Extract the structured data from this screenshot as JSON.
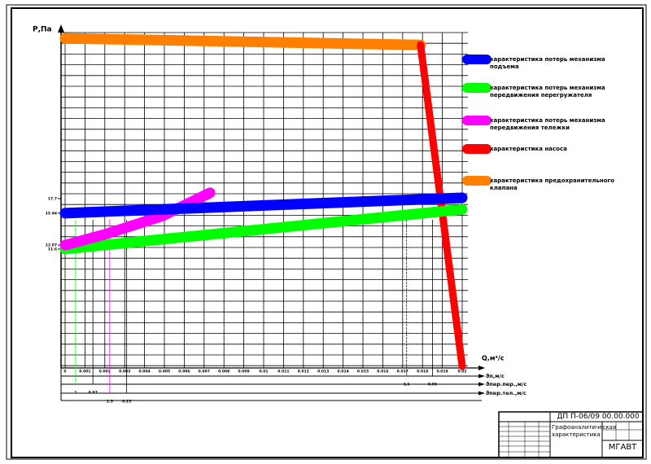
{
  "chart_data": {
    "type": "line",
    "y_label": "Р,Па",
    "x_label": "Q,м³/с",
    "xlim": [
      0,
      0.02
    ],
    "xticks": [
      0,
      0.001,
      0.002,
      0.003,
      0.004,
      0.005,
      0.006,
      0.007,
      0.008,
      0.009,
      0.01,
      0.011,
      0.012,
      0.013,
      0.014,
      0.015,
      0.016,
      0.017,
      0.018,
      0.019,
      0.02
    ],
    "ylim": [
      -2.8,
      37.8
    ],
    "yticks": [
      17.7,
      15.94,
      12.07,
      11.6
    ],
    "grid": true,
    "series": [
      {
        "name": "характеристика потерь механизма подъема",
        "color": "#0000ff",
        "x": [
          0,
          0.02
        ],
        "values": [
          15.94,
          17.8
        ]
      },
      {
        "name": "характеристика потерь механизма передвижения перегружателя",
        "color": "#00ff00",
        "x": [
          0,
          0.02
        ],
        "values": [
          11.6,
          16.4
        ]
      },
      {
        "name": "характеристика потерь механизма передвижения тележки",
        "color": "#ff00ff",
        "x": [
          0,
          0.00205,
          0.0049,
          0.0073
        ],
        "values": [
          12.07,
          13.4,
          15.6,
          18.4
        ]
      },
      {
        "name": "характеристика насоса",
        "color": "#ff0000",
        "x": [
          0.0179,
          0.02
        ],
        "values": [
          36.3,
          -2.6
        ]
      },
      {
        "name": "характеристика предохранительного клапана",
        "color": "#ff8000",
        "x": [
          0,
          0.0179
        ],
        "values": [
          37.1,
          36.3
        ]
      }
    ],
    "sub_axes": [
      {
        "label": "ϑп,м/с",
        "marks": [
          {
            "q": 0.0172,
            "label": "1.6"
          },
          {
            "q": 0.0185,
            "label": "0.95"
          }
        ]
      },
      {
        "label": "ϑпер.пер.,м/с",
        "marks": [
          {
            "q": 0.00053,
            "label": "1"
          },
          {
            "q": 0.0014,
            "label": "0.87"
          }
        ]
      },
      {
        "label": "ϑпер.тел.,м/с",
        "marks": [
          {
            "q": 0.00225,
            "label": "1.5"
          },
          {
            "q": 0.0031,
            "label": "0.15"
          }
        ]
      }
    ]
  },
  "title_block": {
    "code": "ДП П-06/09 00.00.000",
    "name": "Графоаналитическая характеристика",
    "org": "МГАВТ"
  }
}
